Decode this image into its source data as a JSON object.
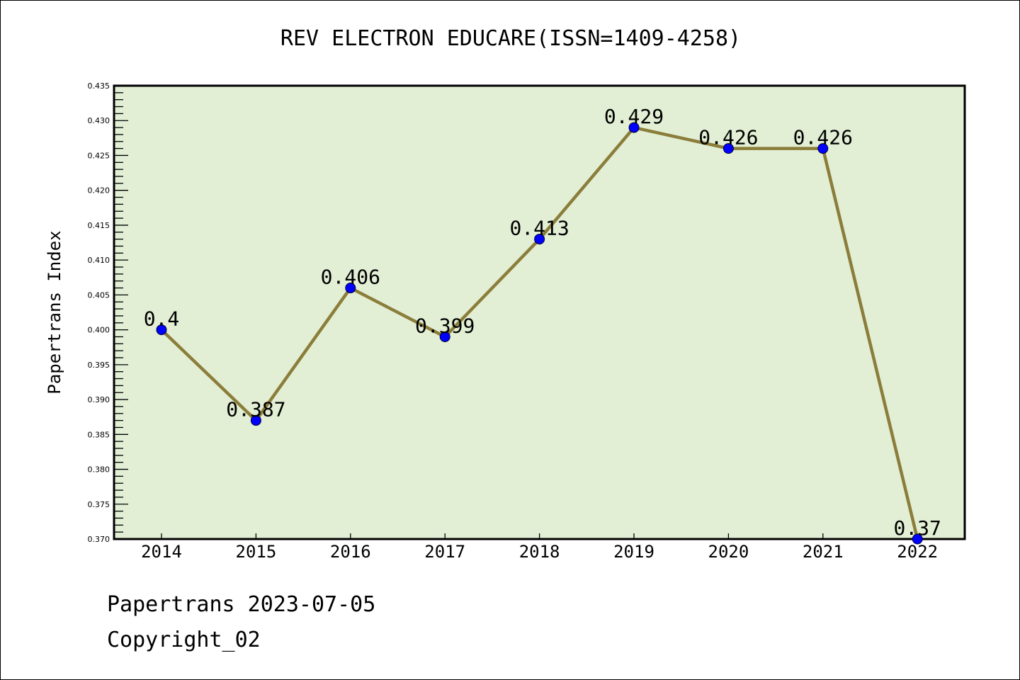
{
  "chart_data": {
    "type": "line",
    "title": "REV ELECTRON EDUCARE(ISSN=1409-4258)",
    "xlabel": "",
    "ylabel": "Papertrans Index",
    "categories": [
      "2014",
      "2015",
      "2016",
      "2017",
      "2018",
      "2019",
      "2020",
      "2021",
      "2022"
    ],
    "series": [
      {
        "name": "Papertrans Index",
        "values": [
          0.4,
          0.387,
          0.406,
          0.399,
          0.413,
          0.429,
          0.426,
          0.426,
          0.37
        ],
        "labels": [
          "0.4",
          "0.387",
          "0.406",
          "0.399",
          "0.413",
          "0.429",
          "0.426",
          "0.426",
          "0.37"
        ]
      }
    ],
    "ylim": [
      0.37,
      0.435
    ],
    "yticks": [
      "0.370",
      "0.375",
      "0.380",
      "0.385",
      "0.390",
      "0.395",
      "0.400",
      "0.405",
      "0.410",
      "0.415",
      "0.420",
      "0.425",
      "0.430",
      "0.435"
    ],
    "grid": false,
    "legend": "none",
    "colors": {
      "plot_bg": "#e2efd5",
      "line": "#8b7d3a",
      "marker": "#0000ff"
    }
  },
  "footer": {
    "line1": "Papertrans 2023-07-05",
    "line2": "Copyright_02"
  }
}
